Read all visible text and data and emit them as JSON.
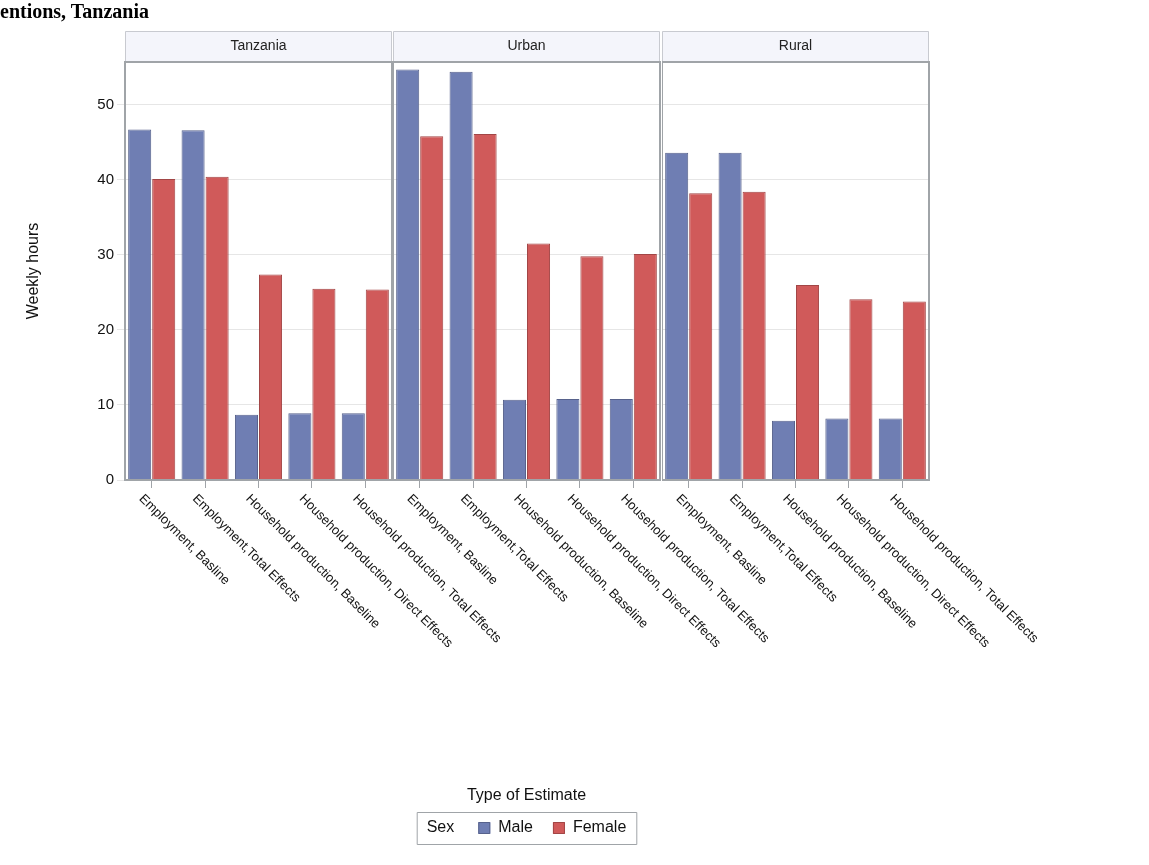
{
  "chart_data": [
    {
      "type": "bar",
      "title": "Tanzania",
      "annotations": [
        "entions, Tanzania"
      ],
      "ylabel": "Weekly hours",
      "categories": [
        "Employment, Basline",
        "Employment,Total Effects",
        "Household production, Baseline",
        "Household production, Direct Effects",
        "Household production, Total Effects"
      ],
      "ylim": [
        0,
        55.7
      ],
      "yticks": [
        0,
        10,
        20,
        30,
        40,
        50
      ],
      "grid": "y",
      "legend": false,
      "series": [
        {
          "color": "#6f7eb3",
          "values": [
            46.7,
            46.6,
            8.7,
            8.9,
            8.9
          ]
        },
        {
          "color": "#d05a5a",
          "values": [
            40.1,
            40.4,
            27.4,
            25.5,
            25.4
          ]
        }
      ]
    },
    {
      "type": "bar",
      "title": "Urban",
      "xlabel": "Type of Estimate",
      "legend_title": "Sex",
      "categories": [
        "Employment, Basline",
        "Employment,Total Effects",
        "Household production, Baseline",
        "Household production, Direct Effects",
        "Household production, Total Effects"
      ],
      "ylim": [
        0,
        55.7
      ],
      "yticks": [
        0,
        10,
        20,
        30,
        40,
        50
      ],
      "grid": "y",
      "legend": "bottom",
      "tick_labels": "x",
      "series": [
        {
          "name": "Male",
          "color": "#6f7eb3",
          "values": [
            54.7,
            54.4,
            10.7,
            10.8,
            10.8
          ]
        },
        {
          "name": "Female",
          "color": "#d05a5a",
          "values": [
            45.8,
            46.1,
            31.5,
            29.8,
            30.1
          ]
        }
      ]
    },
    {
      "type": "bar",
      "title": "Rural",
      "categories": [
        "Employment, Basline",
        "Employment,Total Effects",
        "Household production, Baseline",
        "Household production, Direct Effects",
        "Household production, Total Effects"
      ],
      "ylim": [
        0,
        55.7
      ],
      "yticks": [
        0,
        10,
        20,
        30,
        40,
        50
      ],
      "grid": "y",
      "legend": false,
      "tick_labels": "x",
      "series": [
        {
          "color": "#6f7eb3",
          "values": [
            43.6,
            43.6,
            7.9,
            8.2,
            8.2
          ]
        },
        {
          "color": "#d05a5a",
          "values": [
            38.2,
            38.4,
            26.0,
            24.1,
            23.8
          ]
        }
      ]
    }
  ]
}
